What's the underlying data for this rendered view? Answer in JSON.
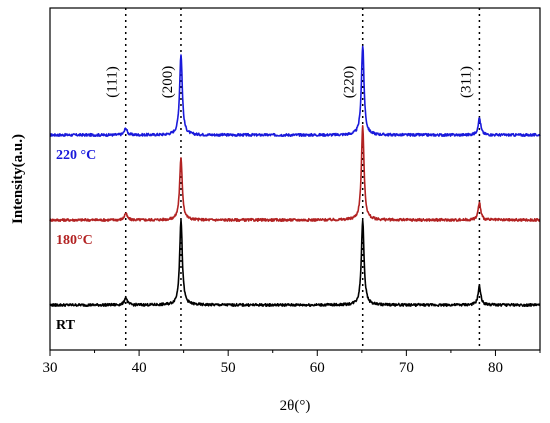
{
  "chart_data": {
    "type": "line",
    "title": "",
    "xlabel": "2θ(°)",
    "ylabel": "Intensity(a.u.)",
    "xlim": [
      30,
      85
    ],
    "x_ticks": [
      30,
      40,
      50,
      60,
      70,
      80
    ],
    "y_ticks_shown": false,
    "grid": false,
    "reference_lines": [
      {
        "x": 38.5,
        "label": "(111)"
      },
      {
        "x": 44.7,
        "label": "(200)"
      },
      {
        "x": 65.1,
        "label": "(220)"
      },
      {
        "x": 78.2,
        "label": "(311)"
      }
    ],
    "series": [
      {
        "name": "220 °C",
        "color": "#1a1adb",
        "baseline": 2.0,
        "peaks": [
          {
            "x": 38.5,
            "height": 0.08
          },
          {
            "x": 44.7,
            "height": 0.95
          },
          {
            "x": 65.1,
            "height": 1.05
          },
          {
            "x": 78.2,
            "height": 0.2
          }
        ]
      },
      {
        "name": "180°C",
        "color": "#b22222",
        "baseline": 1.0,
        "peaks": [
          {
            "x": 38.5,
            "height": 0.08
          },
          {
            "x": 44.7,
            "height": 0.72
          },
          {
            "x": 65.1,
            "height": 1.1
          },
          {
            "x": 78.2,
            "height": 0.2
          }
        ]
      },
      {
        "name": "RT",
        "color": "#000000",
        "baseline": 0.0,
        "peaks": [
          {
            "x": 38.5,
            "height": 0.09
          },
          {
            "x": 44.7,
            "height": 1.0
          },
          {
            "x": 65.1,
            "height": 1.0
          },
          {
            "x": 78.2,
            "height": 0.22
          }
        ]
      }
    ]
  }
}
